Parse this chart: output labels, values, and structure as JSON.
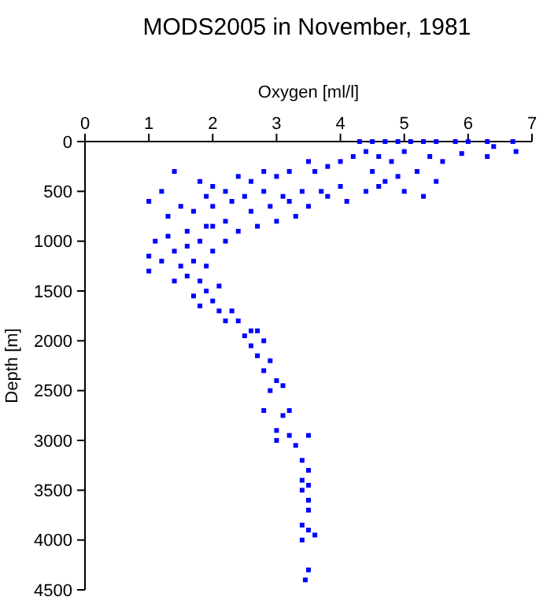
{
  "chart_data": {
    "type": "scatter",
    "title": "MODS2005 in November, 1981",
    "xlabel": "Oxygen [ml/l]",
    "ylabel": "Depth [m]",
    "xlim": [
      0,
      7
    ],
    "xticks": [
      0,
      1,
      2,
      3,
      4,
      5,
      6,
      7
    ],
    "ylim": [
      4500,
      0
    ],
    "yticks": [
      0,
      500,
      1000,
      1500,
      2000,
      2500,
      3000,
      3500,
      4000,
      4500
    ],
    "marker": "square",
    "grid": false,
    "series": [
      {
        "color": "#0000ff",
        "x": [
          4.3,
          4.5,
          4.7,
          4.9,
          5.1,
          5.3,
          5.5,
          5.8,
          6.0,
          6.3,
          6.7,
          6.75,
          6.4,
          6.3,
          5.9,
          5.6,
          5.4,
          5.2,
          5.0,
          4.8,
          4.6,
          4.5,
          4.7,
          4.9,
          5.0,
          5.5,
          5.3,
          4.4,
          4.2,
          4.0,
          3.8,
          3.6,
          3.5,
          3.2,
          3.0,
          2.8,
          2.6,
          2.4,
          2.2,
          2.0,
          1.8,
          1.4,
          1.2,
          1.0,
          1.3,
          1.5,
          1.7,
          2.0,
          2.3,
          2.6,
          2.9,
          3.2,
          3.5,
          3.8,
          4.1,
          4.4,
          4.6,
          4.0,
          3.7,
          3.4,
          3.1,
          2.8,
          2.5,
          1.9,
          3.0,
          3.3,
          2.7,
          2.4,
          2.2,
          1.9,
          1.6,
          1.3,
          1.1,
          1.0,
          1.0,
          1.2,
          1.4,
          1.6,
          1.8,
          2.0,
          2.2,
          2.0,
          1.5,
          1.7,
          1.9,
          1.4,
          1.6,
          1.8,
          2.1,
          1.7,
          1.9,
          2.0,
          1.8,
          2.1,
          2.3,
          2.2,
          2.4,
          2.6,
          2.5,
          2.7,
          2.6,
          2.8,
          2.7,
          2.9,
          2.8,
          3.0,
          2.9,
          3.1,
          2.8,
          3.1,
          3.2,
          3.0,
          3.2,
          3.0,
          3.3,
          3.5,
          3.4,
          3.5,
          3.4,
          3.5,
          3.4,
          3.5,
          3.5,
          3.4,
          3.5,
          3.6,
          3.4,
          3.5,
          3.45
        ],
        "values": [
          0,
          0,
          0,
          0,
          0,
          0,
          0,
          0,
          0,
          0,
          0,
          100,
          50,
          150,
          120,
          200,
          150,
          300,
          100,
          200,
          150,
          300,
          400,
          350,
          500,
          400,
          550,
          100,
          150,
          200,
          250,
          300,
          200,
          300,
          350,
          300,
          400,
          350,
          500,
          450,
          400,
          300,
          500,
          600,
          750,
          650,
          700,
          650,
          600,
          700,
          650,
          600,
          650,
          550,
          600,
          500,
          450,
          450,
          500,
          500,
          550,
          500,
          550,
          550,
          800,
          750,
          850,
          900,
          800,
          850,
          900,
          950,
          1000,
          1150,
          1300,
          1200,
          1100,
          1050,
          1000,
          1100,
          1000,
          850,
          1250,
          1200,
          1250,
          1400,
          1350,
          1400,
          1450,
          1550,
          1500,
          1600,
          1650,
          1700,
          1700,
          1800,
          1800,
          1900,
          1950,
          1900,
          2050,
          2000,
          2150,
          2200,
          2300,
          2400,
          2500,
          2450,
          2700,
          2750,
          2700,
          2900,
          2950,
          3000,
          3050,
          2950,
          3200,
          3300,
          3400,
          3450,
          3500,
          3600,
          3700,
          3850,
          3900,
          3950,
          4000,
          4300,
          4400
        ]
      }
    ]
  }
}
